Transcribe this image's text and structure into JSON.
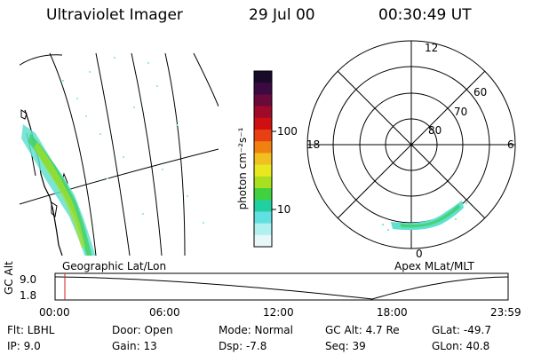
{
  "header": {
    "title": "Ultraviolet Imager",
    "date": "29 Jul 00",
    "time": "00:30:49 UT"
  },
  "colorbar": {
    "unit_label": "photon cm⁻²s⁻¹",
    "tick_labels": [
      "100",
      "10"
    ],
    "colors": [
      "#1a0a2a",
      "#3a0a40",
      "#6a0a3a",
      "#a00a2a",
      "#d01010",
      "#e84010",
      "#f08010",
      "#f0c020",
      "#e8e820",
      "#a8e020",
      "#40d040",
      "#20d0a0",
      "#60e0e0",
      "#b0f0f0",
      "#e8f8f8"
    ]
  },
  "left_panel": {
    "caption": "Geographic Lat/Lon"
  },
  "right_panel": {
    "caption": "Apex MLat/MLT",
    "mlt_labels": {
      "top": "12",
      "left": "18",
      "right": "6",
      "bottom": "0"
    },
    "lat_labels": [
      "60",
      "70",
      "80"
    ]
  },
  "altitude_plot": {
    "ylabel": "GC Alt",
    "ytick_labels": [
      "9.0",
      "1.8"
    ],
    "xtick_labels": [
      "00:00",
      "06:00",
      "12:00",
      "18:00",
      "23:59"
    ]
  },
  "info": {
    "filter": "Flt: LBHL",
    "ip": "IP:  9.0",
    "door": "Door: Open",
    "gain": "Gain: 13",
    "mode": "Mode: Normal",
    "dsp": "Dsp:   -7.8",
    "gc_alt": "GC Alt: 4.7 Re",
    "seq": "Seq: 39",
    "glat": "GLat:  -49.7",
    "glon": "GLon:  40.8"
  }
}
